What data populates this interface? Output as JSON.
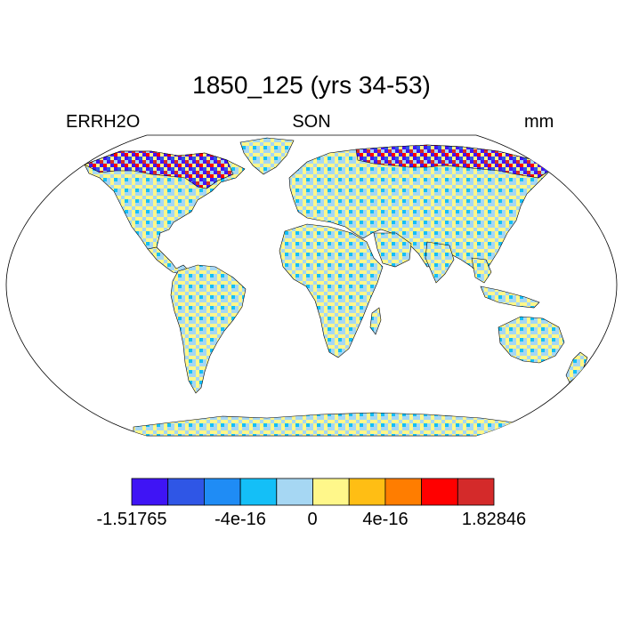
{
  "title": "1850_125 (yrs 34-53)",
  "left_label": "ERRH2O",
  "center_label": "SON",
  "right_label": "mm",
  "colorbar": {
    "colors": [
      "#3f14f5",
      "#2f56e6",
      "#1f8cf5",
      "#14bff7",
      "#a6d7f3",
      "#fff78a",
      "#ffbe14",
      "#ff7d00",
      "#ff0000",
      "#d42a2a"
    ],
    "tick_labels": [
      "-1.51765",
      "-4e-16",
      "0",
      "4e-16",
      "1.82846"
    ]
  },
  "map": {
    "projection": "Robinson",
    "land_fill": "noisy ERRH2O field, mostly near zero (light blue / yellow), with stronger negative values (purple/blue) in high northern latitudes"
  }
}
